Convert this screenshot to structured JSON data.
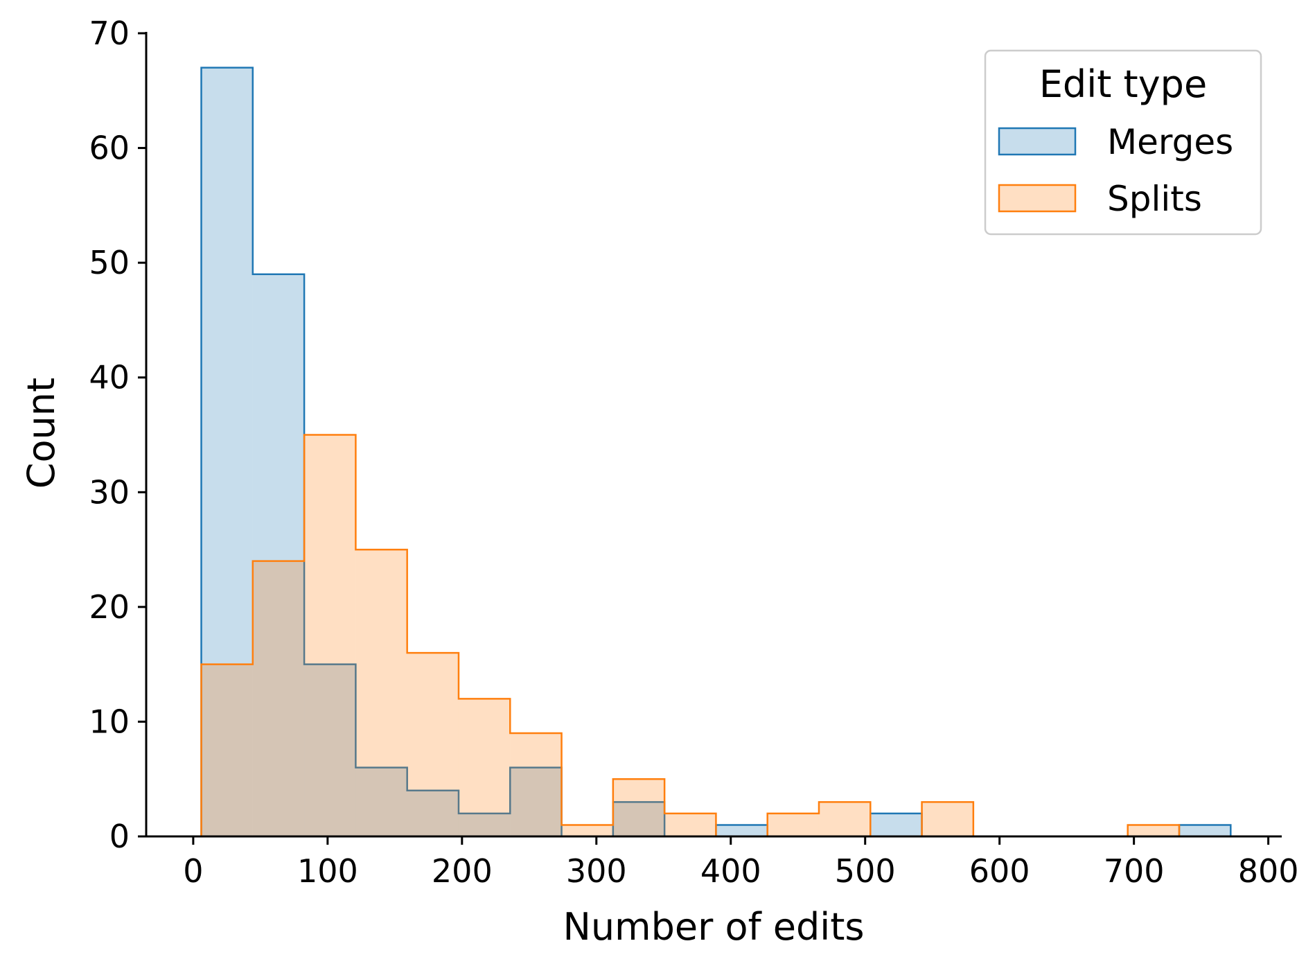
{
  "chart_data": {
    "type": "bar",
    "subtype": "histogram-step-overlay",
    "xlabel": "Number of edits",
    "ylabel": "Count",
    "xlim": [
      -35,
      810
    ],
    "ylim": [
      0,
      70
    ],
    "xticks": [
      0,
      100,
      200,
      300,
      400,
      500,
      600,
      700,
      800
    ],
    "yticks": [
      0,
      10,
      20,
      30,
      40,
      50,
      60,
      70
    ],
    "bin_edges": [
      6,
      44.3,
      82.6,
      120.9,
      159.2,
      197.5,
      235.8,
      274.1,
      312.4,
      350.7,
      389.0,
      427.3,
      465.6,
      503.9,
      542.2,
      580.5,
      618.8,
      657.1,
      695.4,
      733.7,
      772.0
    ],
    "series": [
      {
        "name": "Merges",
        "color": "#1f77b4",
        "fill": "rgba(31,119,180,0.25)",
        "values": [
          67,
          49,
          15,
          6,
          4,
          2,
          6,
          0,
          3,
          0,
          1,
          0,
          0,
          2,
          0,
          0,
          0,
          0,
          0,
          1
        ]
      },
      {
        "name": "Splits",
        "color": "#ff7f0e",
        "fill": "rgba(255,127,14,0.25)",
        "values": [
          15,
          24,
          35,
          25,
          16,
          12,
          9,
          1,
          5,
          2,
          0,
          2,
          3,
          0,
          3,
          0,
          0,
          0,
          1,
          0
        ]
      }
    ],
    "legend": {
      "title": "Edit type",
      "position": "top-right",
      "entries": [
        "Merges",
        "Splits"
      ]
    },
    "grid": false
  }
}
